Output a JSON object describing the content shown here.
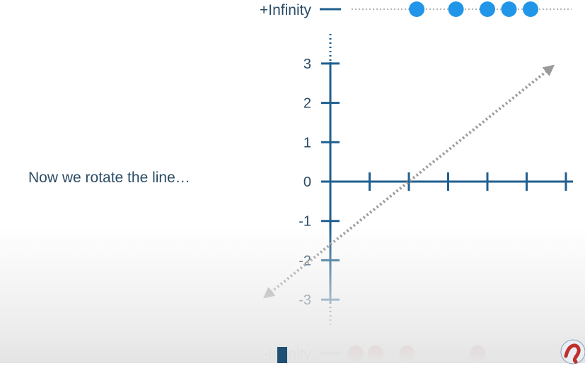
{
  "caption": "Now we rotate the line…",
  "top_label": "+Infinity",
  "bottom_label": "-Infinity",
  "y_tick_labels": [
    "3",
    "2",
    "1",
    "0",
    "-1",
    "-2",
    "-3"
  ],
  "y_tick_values": [
    3,
    2,
    1,
    0,
    -1,
    -2,
    -3
  ],
  "x_tick_count": 6,
  "rotated_line": {
    "x_at_y0": 2,
    "y_at_x0": -1.6,
    "slope": 0.8
  },
  "top_points": [
    {
      "x": 2.2,
      "color": "#2196e8"
    },
    {
      "x": 3.2,
      "color": "#2196e8"
    },
    {
      "x": 4.0,
      "color": "#2196e8"
    },
    {
      "x": 4.55,
      "color": "#2196e8"
    },
    {
      "x": 5.1,
      "color": "#2196e8"
    }
  ],
  "bottom_points": [
    {
      "x": 0.65,
      "color": "#c0302b"
    },
    {
      "x": 1.15,
      "color": "#c0302b"
    },
    {
      "x": 1.95,
      "color": "#c0302b"
    },
    {
      "x": 3.75,
      "color": "#c0302b"
    }
  ],
  "colors": {
    "axis": "#1f5f8f",
    "text": "#2b4c66",
    "dotted": "#9a9a9a",
    "blue_point": "#2196e8",
    "red_point": "#c0302b"
  }
}
